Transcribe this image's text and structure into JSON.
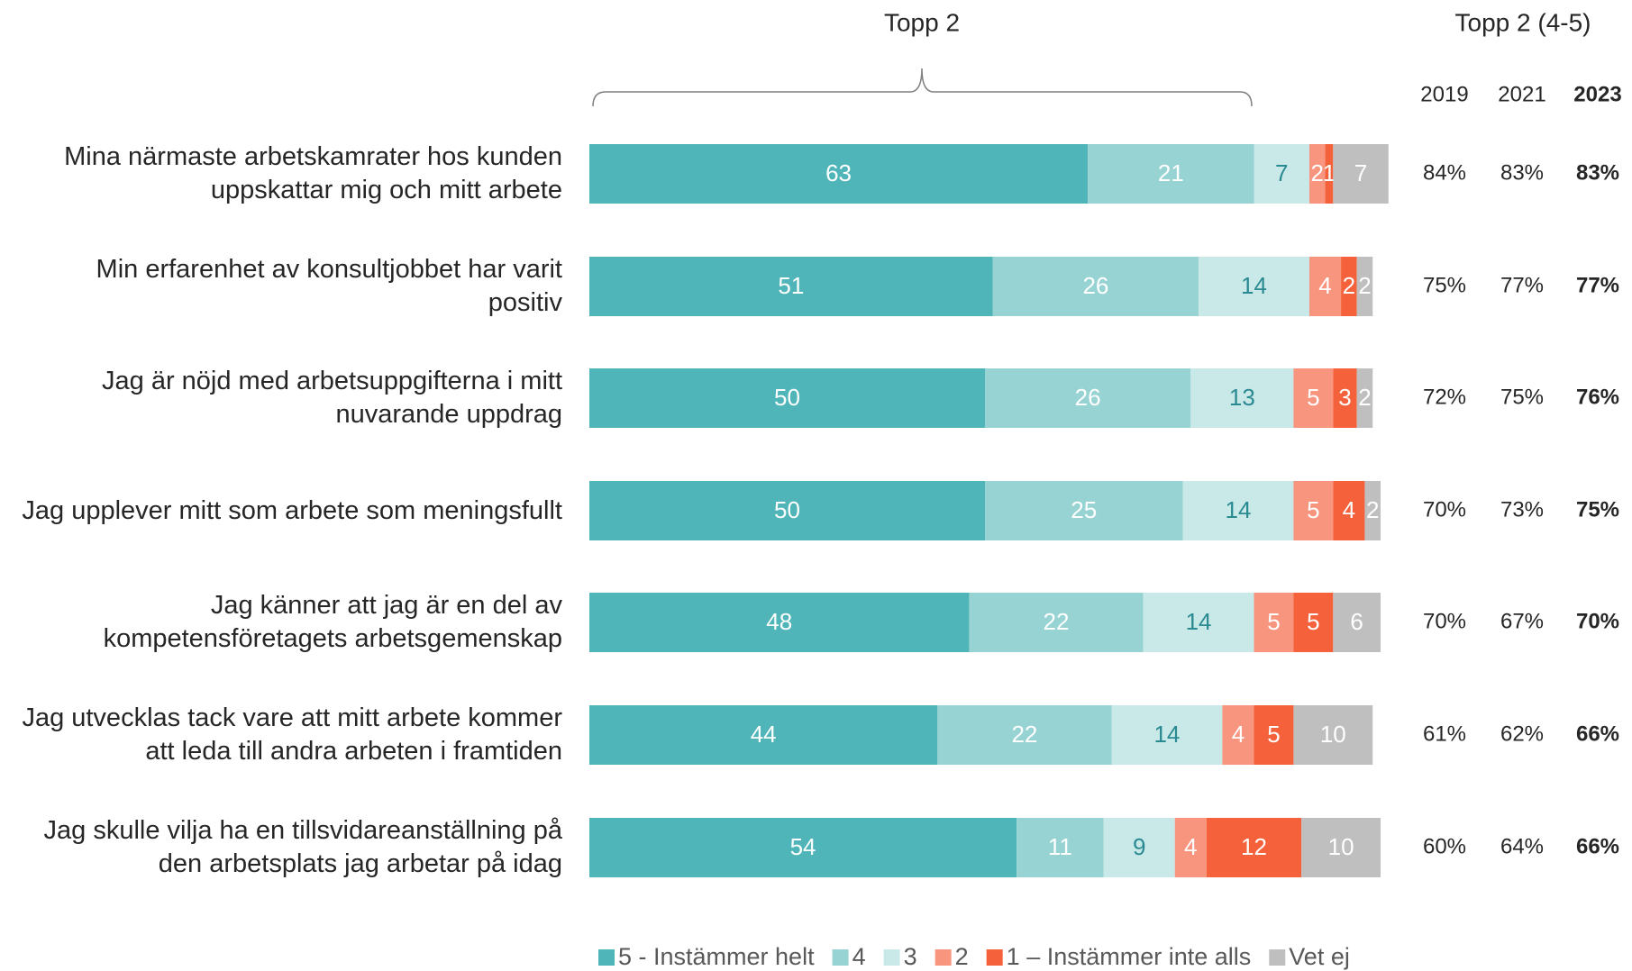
{
  "chart_data": {
    "type": "stacked-bar",
    "orientation": "horizontal",
    "annotation": "Topp 2",
    "categories": [
      "Mina närmaste arbetskamrater hos kunden uppskattar mig och mitt arbete",
      "Min erfarenhet av konsultjobbet har varit positiv",
      "Jag är nöjd med arbetsuppgifterna i mitt nuvarande uppdrag",
      "Jag upplever mitt som arbete som meningsfullt",
      "Jag känner att jag är en del av kompetensföretagets arbetsgemenskap",
      "Jag utvecklas tack vare att mitt arbete kommer att leda till andra arbeten i framtiden",
      "Jag skulle vilja ha en tillsvidareanställning på den arbetsplats jag arbetar på idag"
    ],
    "series": [
      {
        "name": "5 - Instämmer helt",
        "color": "#4fb5b8",
        "label_color": "#ffffff",
        "values": [
          63,
          51,
          50,
          50,
          48,
          44,
          54
        ]
      },
      {
        "name": "4",
        "color": "#98d3d3",
        "label_color": "#ffffff",
        "values": [
          21,
          26,
          26,
          25,
          22,
          22,
          11
        ]
      },
      {
        "name": "3",
        "color": "#c9e8e8",
        "label_color": "#2a8a92",
        "values": [
          7,
          14,
          13,
          14,
          14,
          14,
          9
        ]
      },
      {
        "name": "2",
        "color": "#f7957f",
        "label_color": "#ffffff",
        "values": [
          2,
          4,
          5,
          5,
          5,
          4,
          4
        ]
      },
      {
        "name": "1 – Instämmer inte alls",
        "color": "#f4613a",
        "label_color": "#ffffff",
        "values": [
          1,
          2,
          3,
          4,
          5,
          5,
          12
        ]
      },
      {
        "name": "Vet ej",
        "color": "#bfbfbf",
        "label_color": "#ffffff",
        "values": [
          7,
          2,
          2,
          2,
          6,
          10,
          10
        ]
      }
    ],
    "xlim": [
      0,
      100
    ]
  },
  "table": {
    "title": "Topp 2  (4-5)",
    "columns": [
      "2019",
      "2021",
      "2023"
    ],
    "rows": [
      [
        "84%",
        "83%",
        "83%"
      ],
      [
        "75%",
        "77%",
        "77%"
      ],
      [
        "72%",
        "75%",
        "76%"
      ],
      [
        "70%",
        "73%",
        "75%"
      ],
      [
        "70%",
        "67%",
        "70%"
      ],
      [
        "61%",
        "62%",
        "66%"
      ],
      [
        "60%",
        "64%",
        "66%"
      ]
    ]
  }
}
